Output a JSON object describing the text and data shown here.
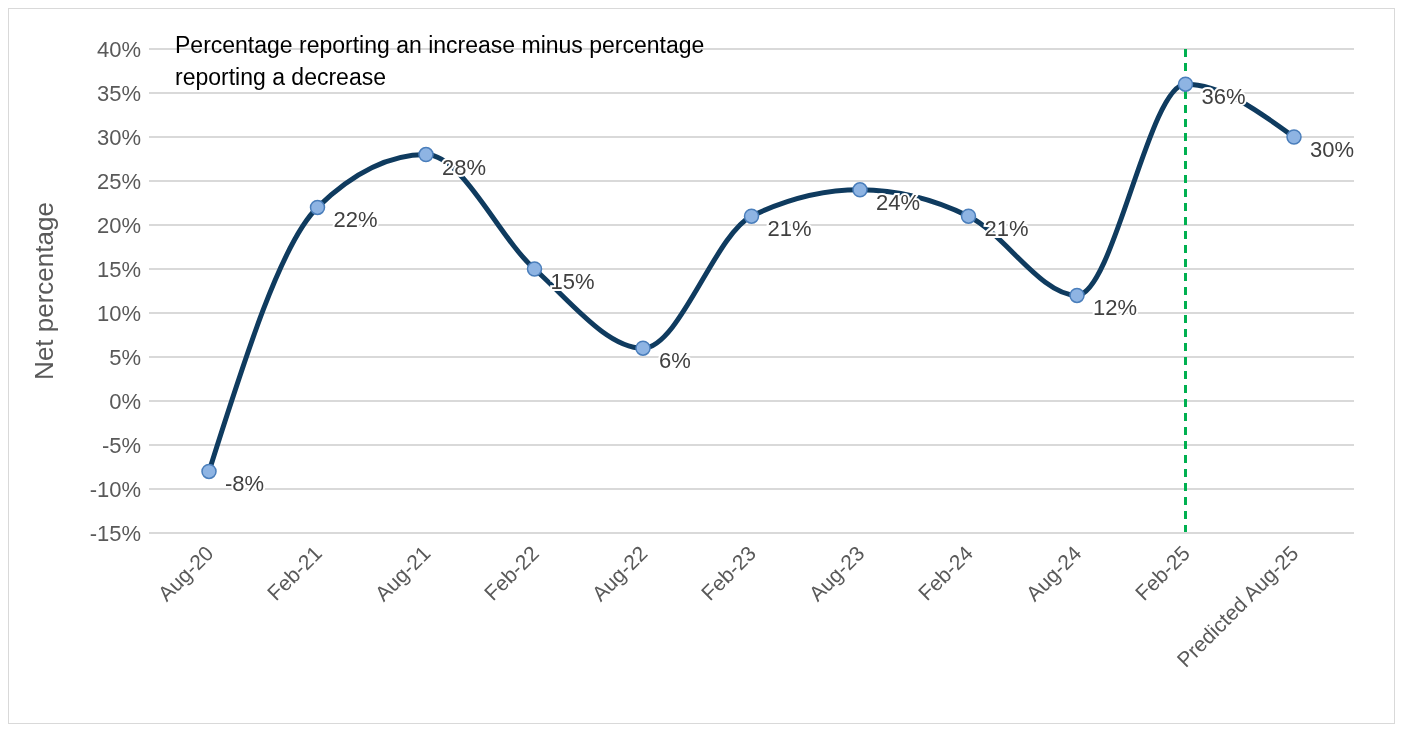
{
  "chart_data": {
    "type": "line",
    "ylabel": "Net percentage",
    "categories": [
      "Aug-20",
      "Feb-21",
      "Aug-21",
      "Feb-22",
      "Aug-22",
      "Feb-23",
      "Aug-23",
      "Feb-24",
      "Aug-24",
      "Feb-25",
      "Predicted Aug-25"
    ],
    "series": [
      {
        "color": "#0f3b5f",
        "values": [
          -8,
          22,
          28,
          15,
          6,
          21,
          24,
          21,
          12,
          36,
          30
        ],
        "value_labels": [
          "-8%",
          "22%",
          "28%",
          "15%",
          "6%",
          "21%",
          "24%",
          "21%",
          "12%",
          "36%",
          "30%"
        ]
      }
    ],
    "ylim": [
      -15,
      40
    ],
    "yticks": [
      {
        "value": -15,
        "label": "-15%"
      },
      {
        "value": -10,
        "label": "-10%"
      },
      {
        "value": -5,
        "label": "-5%"
      },
      {
        "value": 0,
        "label": "0%"
      },
      {
        "value": 5,
        "label": "5%"
      },
      {
        "value": 10,
        "label": "10%"
      },
      {
        "value": 15,
        "label": "15%"
      },
      {
        "value": 20,
        "label": "20%"
      },
      {
        "value": 25,
        "label": "25%"
      },
      {
        "value": 30,
        "label": "30%"
      },
      {
        "value": 35,
        "label": "35%"
      },
      {
        "value": 40,
        "label": "40%"
      }
    ],
    "grid": "y",
    "marker": "circle",
    "line_style": "solid",
    "ref_lines": [
      {
        "axis": "x",
        "value": "Feb-25",
        "color": "#00b050",
        "line_style": "dashed"
      }
    ],
    "annotations": [
      "Percentage reporting an increase minus percentage reporting a decrease"
    ]
  }
}
